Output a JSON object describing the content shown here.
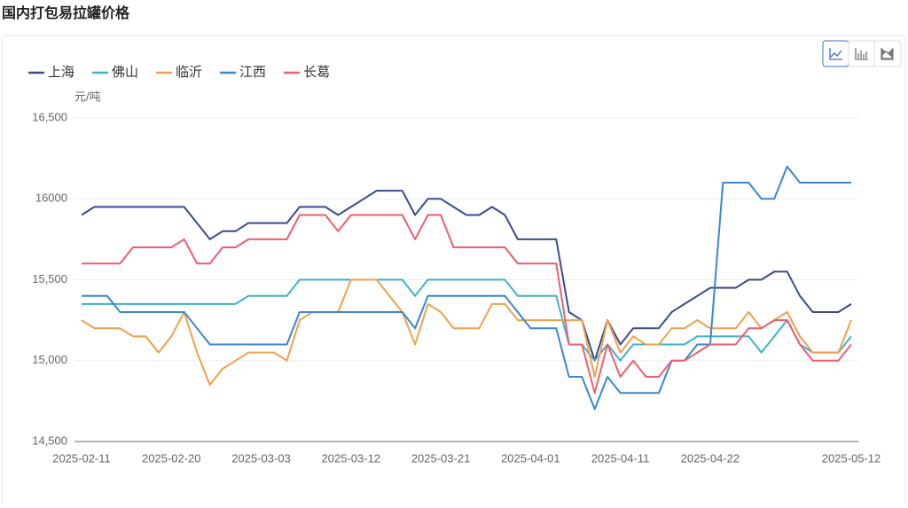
{
  "chart_data": {
    "type": "line",
    "title": "国内打包易拉罐价格",
    "y_unit": "元/吨",
    "categories": [
      "2025-02-11",
      null,
      null,
      null,
      null,
      null,
      null,
      "2025-02-20",
      null,
      null,
      null,
      null,
      null,
      null,
      "2025-03-03",
      null,
      null,
      null,
      null,
      null,
      null,
      "2025-03-12",
      null,
      null,
      null,
      null,
      null,
      null,
      "2025-03-21",
      null,
      null,
      null,
      null,
      null,
      null,
      "2025-04-01",
      null,
      null,
      null,
      null,
      null,
      null,
      "2025-04-11",
      null,
      null,
      null,
      null,
      null,
      null,
      "2025-04-22",
      null,
      null,
      null,
      null,
      null,
      null,
      null,
      null,
      null,
      null,
      "2025-05-12"
    ],
    "series": [
      {
        "name": "上海",
        "color": "#3d4a8a",
        "values": [
          15900,
          15950,
          15950,
          15950,
          15950,
          15950,
          15950,
          15950,
          15950,
          15850,
          15750,
          15800,
          15800,
          15850,
          15850,
          15850,
          15850,
          15950,
          15950,
          15950,
          15900,
          15950,
          16000,
          16050,
          16050,
          16050,
          15900,
          16000,
          16000,
          15950,
          15900,
          15900,
          15950,
          15900,
          15750,
          15750,
          15750,
          15750,
          15300,
          15250,
          15000,
          15250,
          15100,
          15200,
          15200,
          15200,
          15300,
          15350,
          15400,
          15450,
          15450,
          15450,
          15500,
          15500,
          15550,
          15550,
          15400,
          15300,
          15300,
          15300,
          15350
        ]
      },
      {
        "name": "佛山",
        "color": "#3fb1c8",
        "values": [
          15350,
          15350,
          15350,
          15350,
          15350,
          15350,
          15350,
          15350,
          15350,
          15350,
          15350,
          15350,
          15350,
          15400,
          15400,
          15400,
          15400,
          15500,
          15500,
          15500,
          15500,
          15500,
          15500,
          15500,
          15500,
          15500,
          15400,
          15500,
          15500,
          15500,
          15500,
          15500,
          15500,
          15500,
          15400,
          15400,
          15400,
          15400,
          15100,
          15100,
          15000,
          15100,
          15000,
          15100,
          15100,
          15100,
          15100,
          15100,
          15150,
          15150,
          15150,
          15150,
          15150,
          15050,
          15150,
          15250,
          15100,
          15050,
          15050,
          15050,
          15150
        ]
      },
      {
        "name": "临沂",
        "color": "#f0a04b",
        "values": [
          15250,
          15200,
          15200,
          15200,
          15150,
          15150,
          15050,
          15150,
          15300,
          15050,
          14850,
          14950,
          15000,
          15050,
          15050,
          15050,
          15000,
          15250,
          15300,
          15300,
          15300,
          15500,
          15500,
          15500,
          15400,
          15300,
          15100,
          15350,
          15300,
          15200,
          15200,
          15200,
          15350,
          15350,
          15250,
          15250,
          15250,
          15250,
          15250,
          15250,
          14900,
          15250,
          15050,
          15150,
          15100,
          15100,
          15200,
          15200,
          15250,
          15200,
          15200,
          15200,
          15300,
          15200,
          15250,
          15300,
          15150,
          15050,
          15050,
          15050,
          15250
        ]
      },
      {
        "name": "江西",
        "color": "#3a86d0",
        "values": [
          15400,
          15400,
          15400,
          15300,
          15300,
          15300,
          15300,
          15300,
          15300,
          15200,
          15100,
          15100,
          15100,
          15100,
          15100,
          15100,
          15100,
          15300,
          15300,
          15300,
          15300,
          15300,
          15300,
          15300,
          15300,
          15300,
          15200,
          15400,
          15400,
          15400,
          15400,
          15400,
          15400,
          15400,
          15300,
          15200,
          15200,
          15200,
          14900,
          14900,
          14700,
          14900,
          14800,
          14800,
          14800,
          14800,
          15000,
          15000,
          15100,
          15100,
          16100,
          16100,
          16100,
          16000,
          16000,
          16200,
          16100,
          16100,
          16100,
          16100,
          16100
        ]
      },
      {
        "name": "长葛",
        "color": "#ef5d6e",
        "values": [
          15600,
          15600,
          15600,
          15600,
          15700,
          15700,
          15700,
          15700,
          15750,
          15600,
          15600,
          15700,
          15700,
          15750,
          15750,
          15750,
          15750,
          15900,
          15900,
          15900,
          15800,
          15900,
          15900,
          15900,
          15900,
          15900,
          15750,
          15900,
          15900,
          15700,
          15700,
          15700,
          15700,
          15700,
          15600,
          15600,
          15600,
          15600,
          15100,
          15100,
          14800,
          15100,
          14900,
          15000,
          14900,
          14900,
          15000,
          15000,
          15050,
          15100,
          15100,
          15100,
          15200,
          15200,
          15250,
          15250,
          15100,
          15000,
          15000,
          15000,
          15100
        ]
      }
    ],
    "ylim": [
      14500,
      16500
    ],
    "yticks": [
      {
        "value": 14500,
        "label": "14,500"
      },
      {
        "value": 15000,
        "label": "15,000"
      },
      {
        "value": 15500,
        "label": "15,500"
      },
      {
        "value": 16000,
        "label": "16000"
      },
      {
        "value": 16500,
        "label": "16,500"
      }
    ],
    "grid": true,
    "legend": "top-left"
  }
}
